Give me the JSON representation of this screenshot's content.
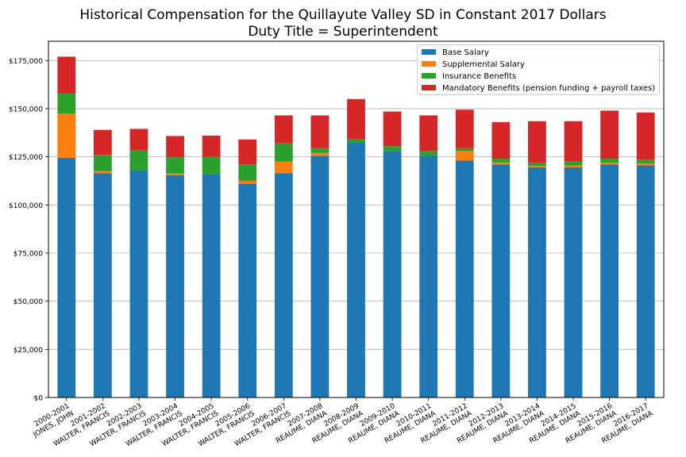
{
  "chart_data": {
    "type": "bar",
    "stacked": true,
    "title": "Historical Compensation for the Quillayute Valley SD in Constant 2017 Dollars",
    "subtitle": "Duty Title = Superintendent",
    "xlabel": "",
    "ylabel": "",
    "ylim": [
      0,
      185000
    ],
    "yticks": [
      0,
      25000,
      50000,
      75000,
      100000,
      125000,
      150000,
      175000
    ],
    "ytick_labels": [
      "$0",
      "$25,000",
      "$50,000",
      "$75,000",
      "$100,000",
      "$125,000",
      "$150,000",
      "$175,000"
    ],
    "grid": "horizontal",
    "legend_position": "top-right",
    "categories": [
      [
        "2000-2001",
        "JONES, JOHN"
      ],
      [
        "2001-2002",
        "WALTER, FRANCIS"
      ],
      [
        "2002-2003",
        "WALTER, FRANCIS"
      ],
      [
        "2003-2004",
        "WALTER, FRANCIS"
      ],
      [
        "2004-2005",
        "WALTER, FRANCIS"
      ],
      [
        "2005-2006",
        "WALTER, FRANCIS"
      ],
      [
        "2006-2007",
        "WALTER, FRANCIS"
      ],
      [
        "2007-2008",
        "REAUME, DIANA"
      ],
      [
        "2008-2009",
        "REAUME, DIANA"
      ],
      [
        "2009-2010",
        "REAUME, DIANA"
      ],
      [
        "2010-2011",
        "REAUME, DIANA"
      ],
      [
        "2011-2012",
        "REAUME, DIANA"
      ],
      [
        "2012-2013",
        "REAUME, DIANA"
      ],
      [
        "2013-2014",
        "REAUME, DIANA"
      ],
      [
        "2014-2015",
        "REAUME, DIANA"
      ],
      [
        "2015-2016",
        "REAUME, DIANA"
      ],
      [
        "2016-2017",
        "REAUME, DIANA"
      ]
    ],
    "series": [
      {
        "name": "Base Salary",
        "color": "#1f77b4",
        "values": [
          124500,
          116500,
          118000,
          115500,
          116000,
          111000,
          116500,
          125500,
          132500,
          128000,
          125500,
          123000,
          121000,
          119500,
          119500,
          121000,
          120500
        ]
      },
      {
        "name": "Supplemental Salary",
        "color": "#ff7f0e",
        "values": [
          23000,
          1000,
          0,
          800,
          0,
          1500,
          6000,
          1500,
          0,
          0,
          0,
          5000,
          1000,
          700,
          1000,
          1000,
          1000
        ]
      },
      {
        "name": "Insurance Benefits",
        "color": "#2ca02c",
        "values": [
          10500,
          8500,
          10500,
          8500,
          9000,
          8500,
          9500,
          2500,
          1800,
          2500,
          2500,
          1500,
          2000,
          1800,
          2000,
          2000,
          2000
        ]
      },
      {
        "name": "Mandatory Benefits (pension funding + payroll taxes)",
        "color": "#d62728",
        "values": [
          19000,
          13000,
          11000,
          11000,
          11000,
          13000,
          14500,
          17000,
          20700,
          18000,
          18500,
          20000,
          19000,
          21500,
          21000,
          25000,
          24500
        ]
      }
    ]
  }
}
